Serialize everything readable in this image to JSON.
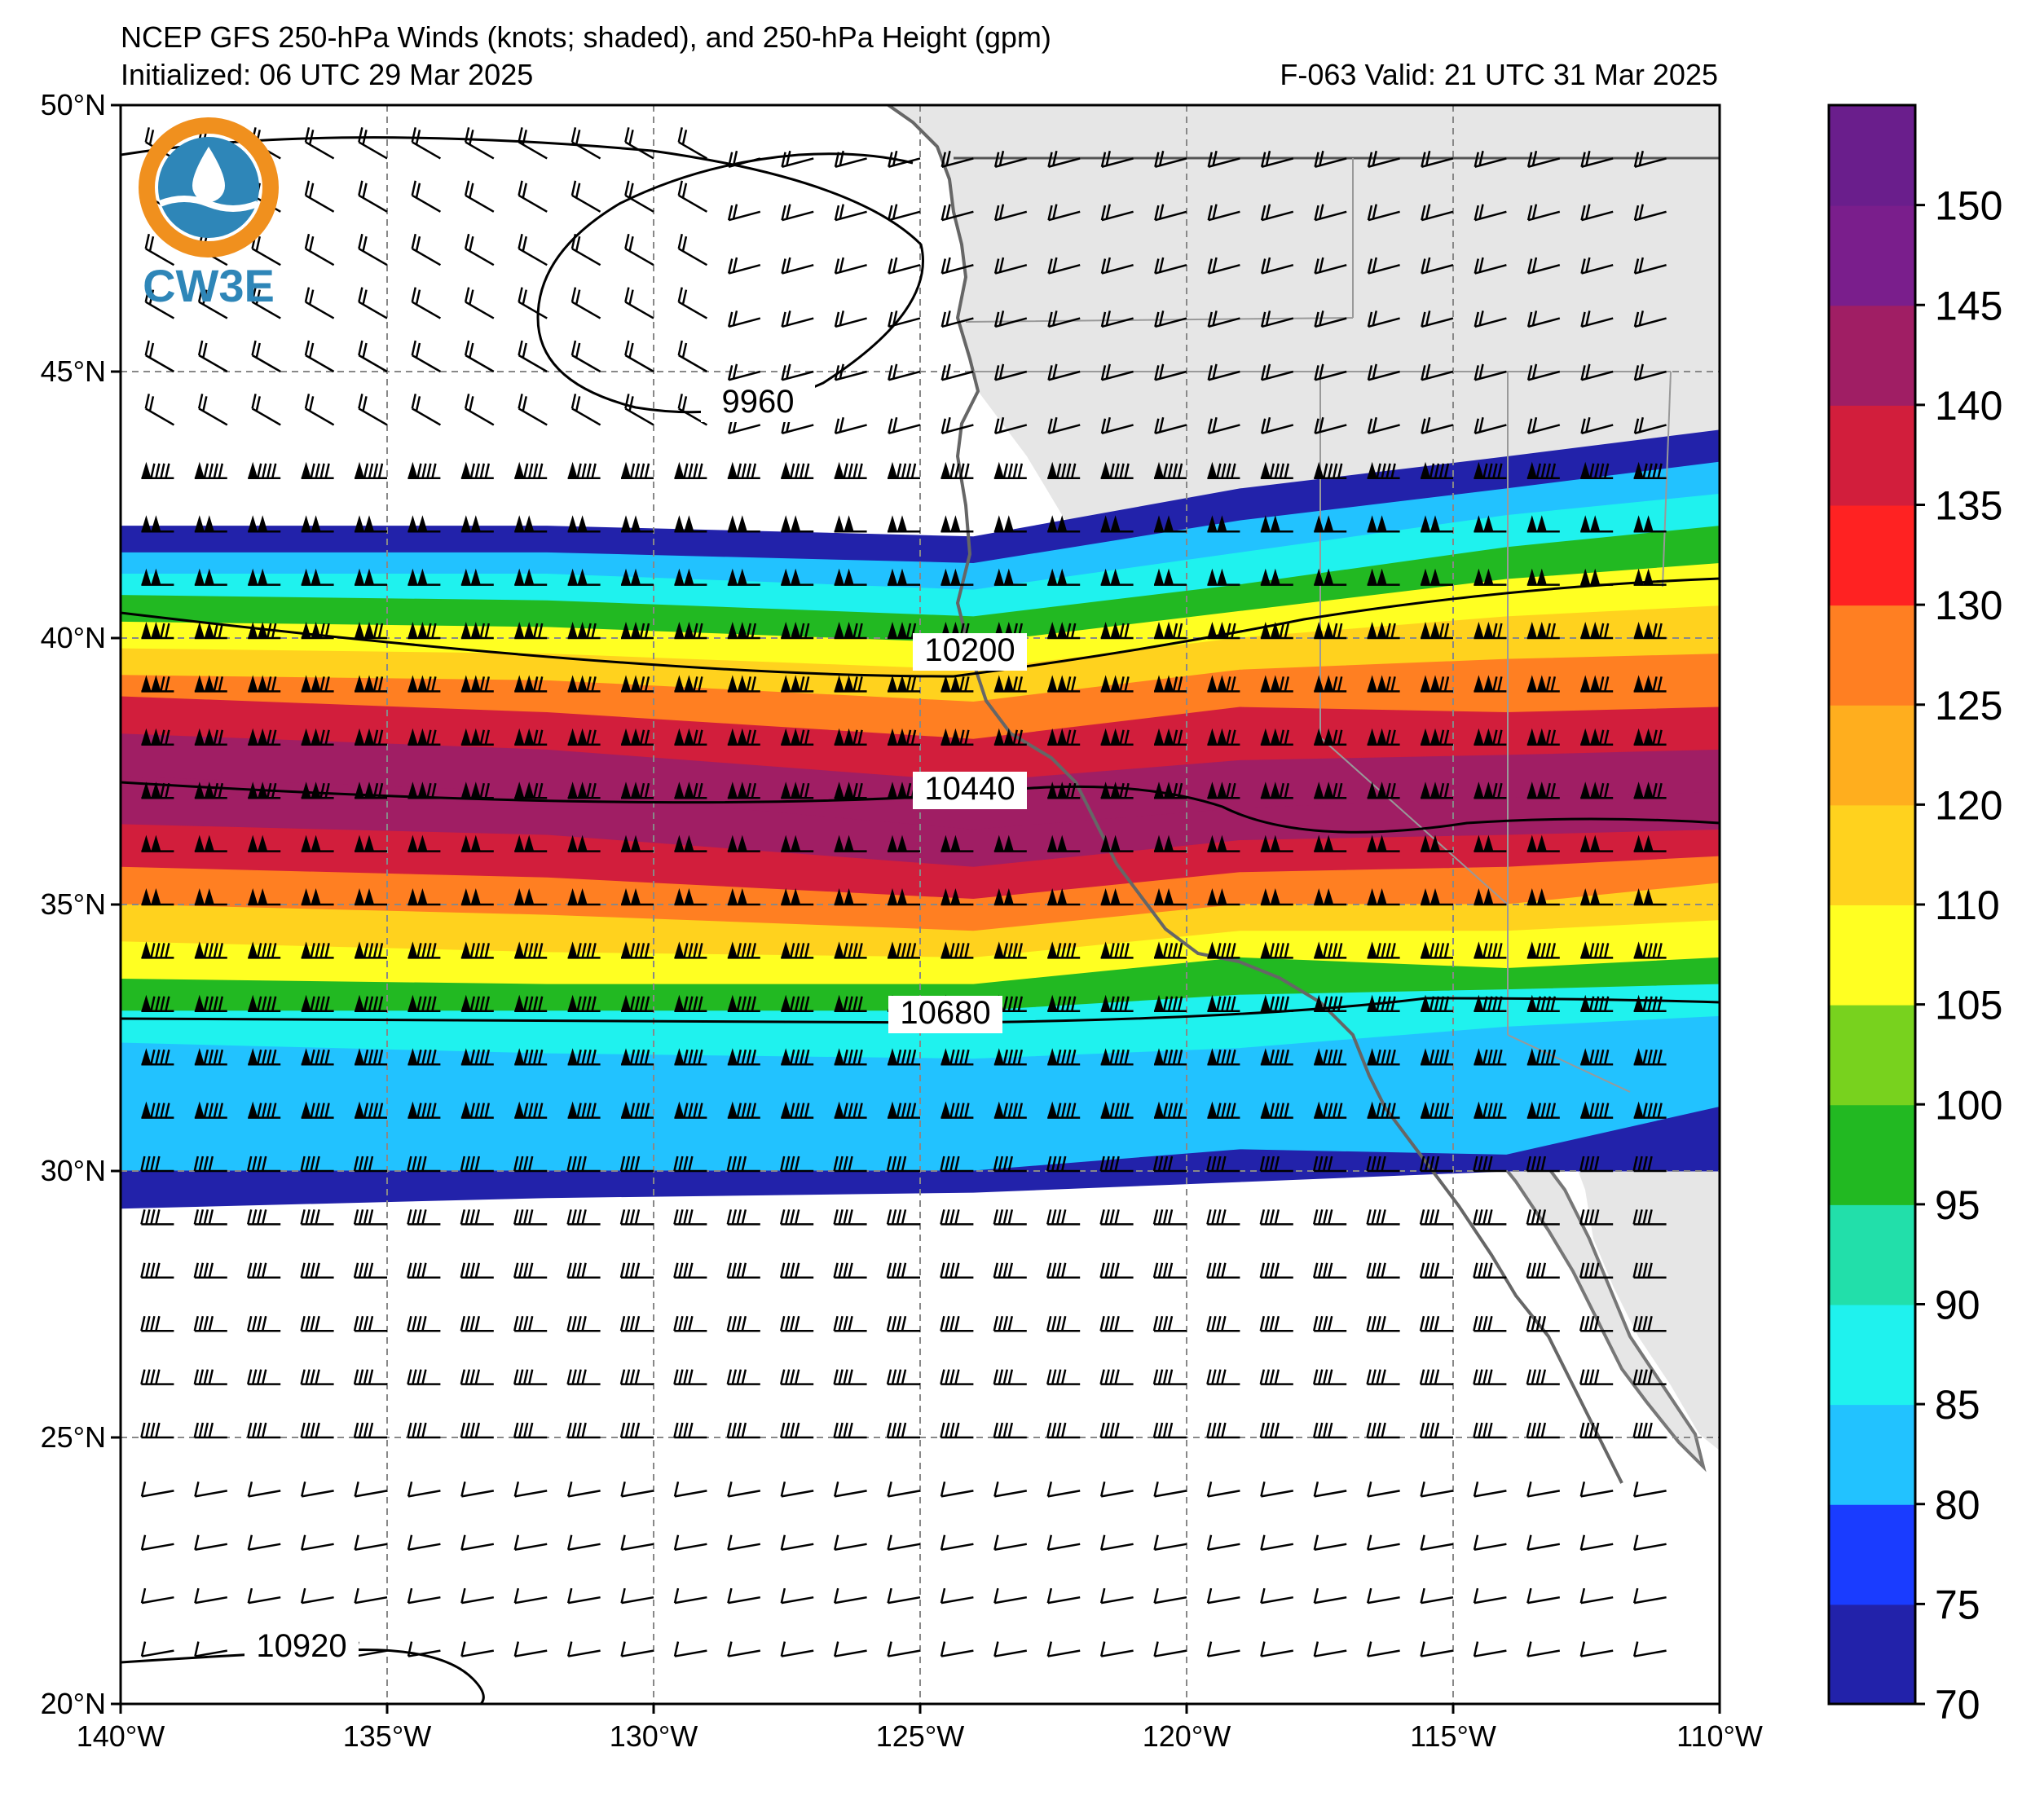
{
  "title": {
    "line1": "NCEP GFS 250-hPa Winds (knots; shaded), and 250-hPa Height (gpm)",
    "init": "Initialized: 06 UTC 29 Mar 2025",
    "valid": "F-063  Valid: 21 UTC 31 Mar 2025"
  },
  "logo": {
    "text": "CW3E"
  },
  "map": {
    "lon_range": [
      -140,
      -110
    ],
    "lat_range": [
      20,
      50
    ],
    "lon_ticks": [
      {
        "value": -140,
        "label": "140°W"
      },
      {
        "value": -135,
        "label": "135°W"
      },
      {
        "value": -130,
        "label": "130°W"
      },
      {
        "value": -125,
        "label": "125°W"
      },
      {
        "value": -120,
        "label": "120°W"
      },
      {
        "value": -115,
        "label": "115°W"
      },
      {
        "value": -110,
        "label": "110°W"
      }
    ],
    "lat_ticks": [
      {
        "value": 50,
        "label": "50°N"
      },
      {
        "value": 45,
        "label": "45°N"
      },
      {
        "value": 40,
        "label": "40°N"
      },
      {
        "value": 35,
        "label": "35°N"
      },
      {
        "value": 30,
        "label": "30°N"
      },
      {
        "value": 25,
        "label": "25°N"
      },
      {
        "value": 20,
        "label": "20°N"
      }
    ],
    "gridlines": true,
    "land_color": "#e6e6e6",
    "height_contours": [
      {
        "value": 9960,
        "label": "9960"
      },
      {
        "value": 10200,
        "label": "10200"
      },
      {
        "value": 10440,
        "label": "10440"
      },
      {
        "value": 10680,
        "label": "10680"
      },
      {
        "value": 10920,
        "label": "10920"
      }
    ],
    "jet_bands_by_lon": [
      {
        "lon": -140,
        "edges": [
          42.1,
          41.6,
          41.2,
          40.8,
          40.3,
          39.8,
          39.3,
          38.9,
          38.2,
          37.4,
          36.5,
          35.7,
          35.0,
          34.3,
          33.6,
          33.0,
          32.4,
          30.0,
          29.3
        ]
      },
      {
        "lon": -132,
        "edges": [
          42.1,
          41.6,
          41.2,
          40.7,
          40.2,
          39.7,
          39.2,
          38.6,
          37.9,
          37.1,
          36.3,
          35.5,
          34.8,
          34.1,
          33.5,
          33.0,
          32.2,
          30.0,
          29.5
        ]
      },
      {
        "lon": -124,
        "edges": [
          41.9,
          41.4,
          40.9,
          40.4,
          39.9,
          39.4,
          38.8,
          38.1,
          37.3,
          36.4,
          35.7,
          35.1,
          34.5,
          34.0,
          33.5,
          33.0,
          32.1,
          30.0,
          29.6
        ]
      },
      {
        "lon": -119,
        "edges": [
          42.8,
          42.2,
          41.6,
          41.0,
          40.5,
          40.0,
          39.4,
          38.7,
          37.7,
          36.8,
          36.2,
          35.6,
          35.0,
          34.5,
          34.0,
          33.3,
          32.3,
          30.4,
          29.8
        ]
      },
      {
        "lon": -114,
        "edges": [
          43.4,
          42.8,
          42.3,
          41.7,
          41.1,
          40.4,
          39.6,
          38.6,
          37.8,
          37.0,
          36.3,
          35.7,
          35.0,
          34.5,
          33.8,
          33.4,
          32.7,
          30.3,
          30.0
        ]
      },
      {
        "lon": -110,
        "edges": [
          43.9,
          43.3,
          42.7,
          42.1,
          41.4,
          40.6,
          39.7,
          38.7,
          37.9,
          37.1,
          36.4,
          35.9,
          35.4,
          34.7,
          34.0,
          33.5,
          32.9,
          31.2,
          30.0
        ]
      }
    ]
  },
  "colorbar": {
    "levels": [
      70,
      75,
      80,
      85,
      90,
      95,
      100,
      105,
      110,
      115,
      120,
      125,
      130,
      135,
      140,
      145,
      150,
      155
    ],
    "labels": [
      "70",
      "75",
      "80",
      "85",
      "90",
      "95",
      "100",
      "105",
      "110",
      "120",
      "125",
      "130",
      "135",
      "140",
      "145",
      "150"
    ],
    "colors": [
      "#2222aa",
      "#1a3cff",
      "#22c2ff",
      "#1ff2ee",
      "#22dfaa",
      "#22b922",
      "#78d21e",
      "#ffff22",
      "#ffd21e",
      "#ffae1e",
      "#ff7f22",
      "#ff2222",
      "#d21e3c",
      "#a01e64",
      "#7a1e8c",
      "#6a1e8c"
    ]
  },
  "chart_data": {
    "type": "heatmap",
    "title": "NCEP GFS 250-hPa Winds (knots; shaded), and 250-hPa Height (gpm)",
    "x_range": [
      -140,
      -110
    ],
    "y_range": [
      20,
      50
    ],
    "colorbar_range": [
      70,
      155
    ],
    "height_contour_values": [
      9960,
      10200,
      10440,
      10680,
      10920
    ],
    "jet_core_max_knots": 150
  }
}
